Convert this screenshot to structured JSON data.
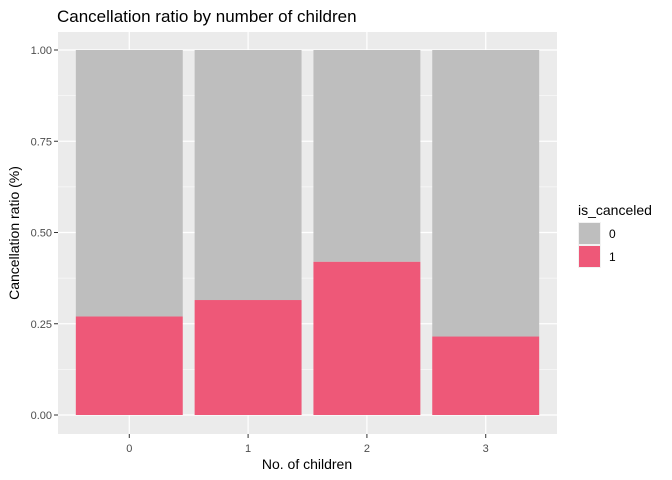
{
  "chart_data": {
    "type": "bar",
    "stacked": true,
    "title": "Cancellation ratio by number of children",
    "xlabel": "No. of children",
    "ylabel": "Cancellation ratio (%)",
    "categories": [
      "0",
      "1",
      "2",
      "3"
    ],
    "ylim": [
      0,
      1
    ],
    "yticks": [
      "0.00",
      "0.25",
      "0.50",
      "0.75",
      "1.00"
    ],
    "grid": true,
    "legend": {
      "title": "is_canceled",
      "position": "right"
    },
    "series": [
      {
        "name": "0",
        "color": "#bebebe",
        "values": [
          0.73,
          0.685,
          0.58,
          0.785
        ]
      },
      {
        "name": "1",
        "color": "#ee5878",
        "values": [
          0.27,
          0.315,
          0.42,
          0.215
        ]
      }
    ]
  }
}
